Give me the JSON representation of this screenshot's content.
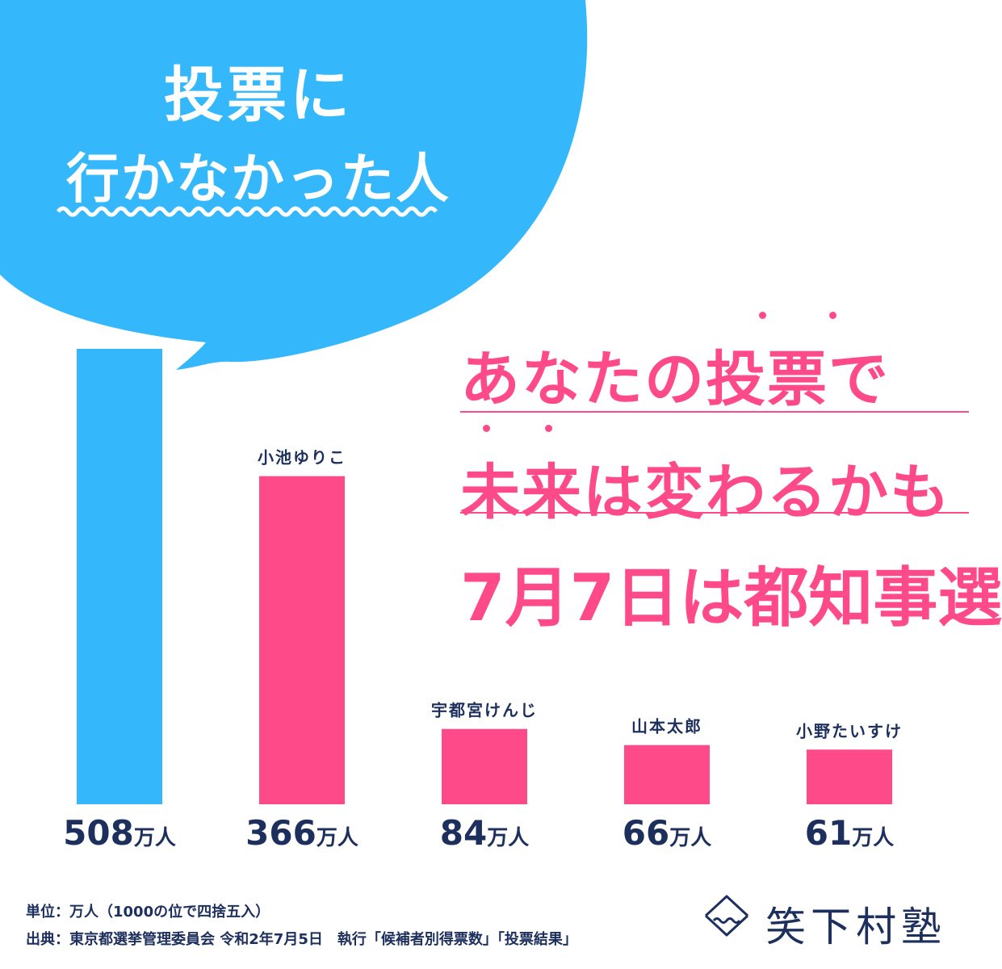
{
  "bubble": {
    "title_line1": "投票に",
    "title_line2": "行かなかった人",
    "color": "#35b8fb"
  },
  "message": {
    "line1": "あなたの投票で",
    "line2": "未来は変わるかも",
    "line3": "7月7日は都知事選",
    "color": "#ff4a8a"
  },
  "chart_data": {
    "type": "bar",
    "categories": [
      "",
      "小池ゆりこ",
      "宇都宮けんじ",
      "山本太郎",
      "小野たいすけ"
    ],
    "values": [
      508,
      366,
      84,
      66,
      61
    ],
    "value_labels": [
      "508",
      "366",
      "84",
      "66",
      "61"
    ],
    "unit": "万人",
    "colors": [
      "#35b8fb",
      "#ff4a8a",
      "#ff4a8a",
      "#ff4a8a",
      "#ff4a8a"
    ],
    "ylim": [
      0,
      508
    ],
    "grid": false
  },
  "footer": {
    "unit_note": "単位：万人（1000の位で四捨五入）",
    "source_note": "出典：東京都選挙管理委員会 令和2年7月5日　執行「候補者別得票数」「投票結果」"
  },
  "logo": {
    "text": "笑下村塾",
    "icon": "mountain-wave-icon",
    "color": "#1d2f5c"
  }
}
